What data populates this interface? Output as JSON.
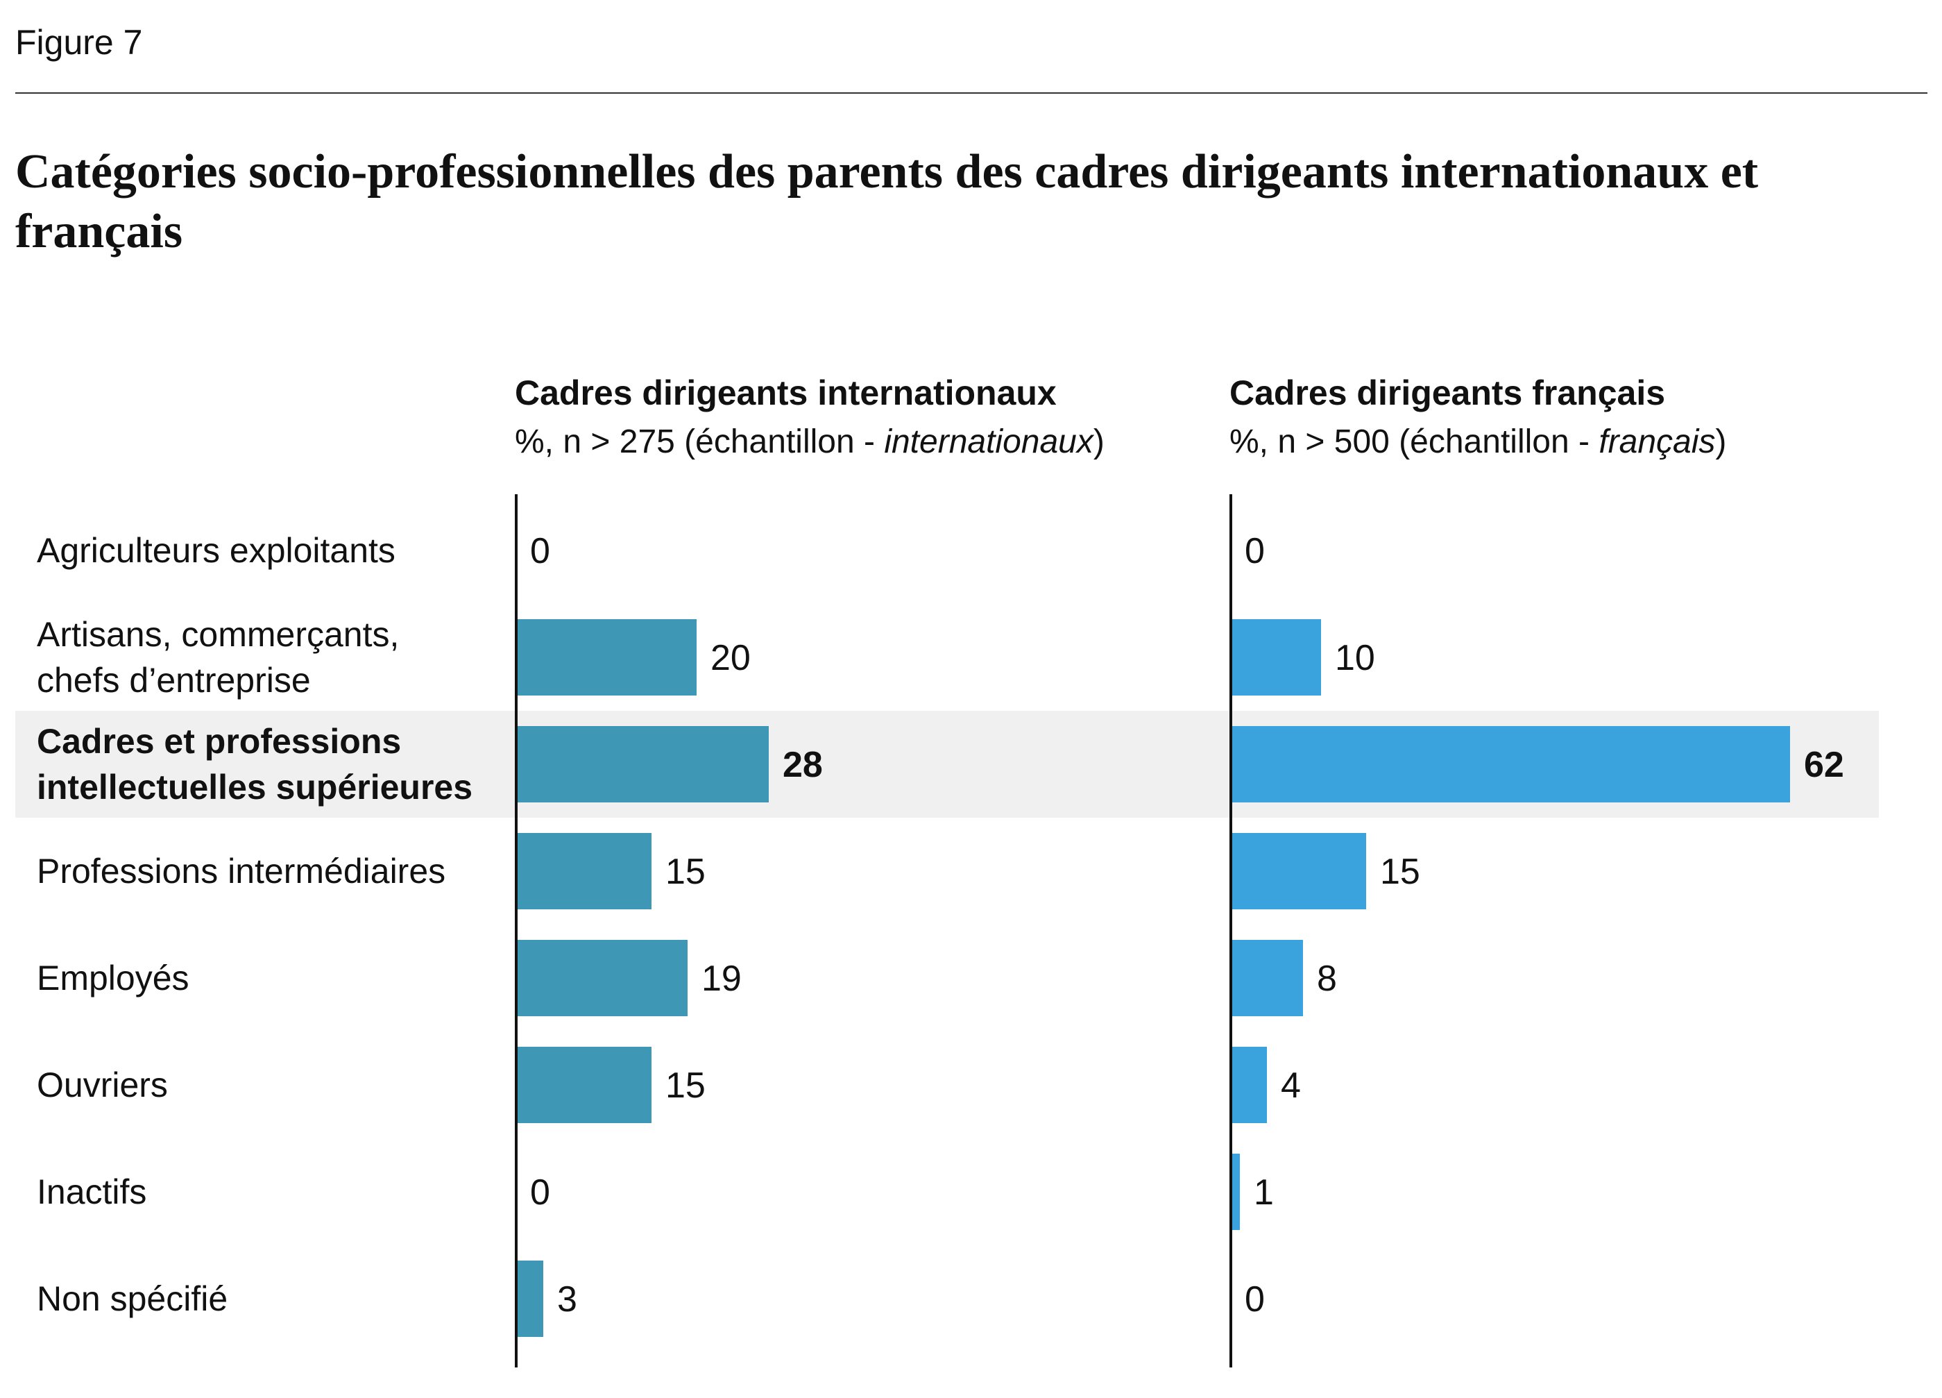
{
  "figure_label": "Figure 7",
  "chart_data": {
    "type": "bar",
    "title": "Catégories socio-professionnelles des parents des cadres dirigeants internationaux et français",
    "categories": [
      "Agriculteurs exploitants",
      "Artisans, commerçants, chefs d’entreprise",
      "Cadres et professions intellectuelles supérieures",
      "Professions intermédiaires",
      "Employés",
      "Ouvriers",
      "Inactifs",
      "Non spécifié"
    ],
    "category_lines": [
      [
        "Agriculteurs exploitants"
      ],
      [
        "Artisans, commerçants,",
        "chefs d’entreprise"
      ],
      [
        "Cadres et professions",
        "intellectuelles supérieures"
      ],
      [
        "Professions intermédiaires"
      ],
      [
        "Employés"
      ],
      [
        "Ouvriers"
      ],
      [
        "Inactifs"
      ],
      [
        "Non spécifié"
      ]
    ],
    "highlight_index": 2,
    "series": [
      {
        "name": "Cadres dirigeants internationaux",
        "subtitle_prefix": "%, n > 275 (échantillon - ",
        "subtitle_italic": "internationaux",
        "subtitle_suffix": ")",
        "color": "#3E97B5",
        "values": [
          0,
          20,
          28,
          15,
          19,
          15,
          0,
          3
        ]
      },
      {
        "name": "Cadres dirigeants français",
        "subtitle_prefix": "%, n > 500 (échantillon - ",
        "subtitle_italic": "français",
        "subtitle_suffix": ")",
        "color": "#3AA3DD",
        "values": [
          0,
          10,
          62,
          15,
          8,
          4,
          1,
          0
        ]
      }
    ],
    "xlim": [
      0,
      70
    ],
    "highlight_color": "#F0F0F0",
    "grid": false
  }
}
